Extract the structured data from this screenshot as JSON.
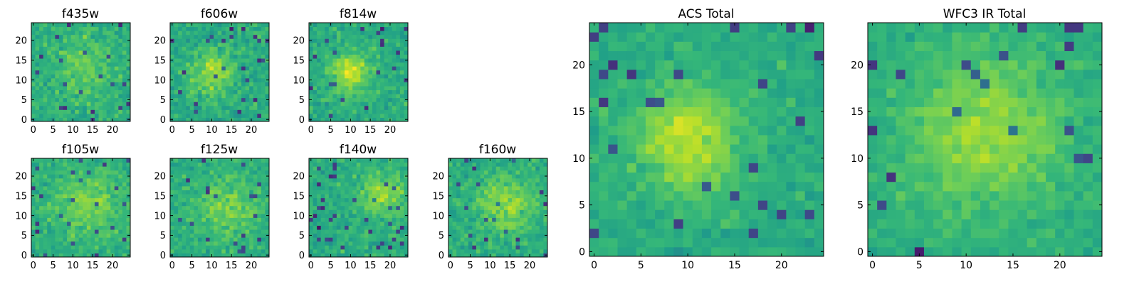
{
  "chart_data": [
    {
      "type": "heatmap",
      "title": "f435w",
      "size": 25,
      "xticks": [
        0,
        5,
        10,
        15,
        20
      ],
      "yticks": [
        0,
        5,
        10,
        15,
        20
      ],
      "peak": [
        13,
        13
      ],
      "peak_width": 6,
      "peak_strength": 0.12,
      "noise": 0.32,
      "seed": 11,
      "colormap": "viridis"
    },
    {
      "type": "heatmap",
      "title": "f606w",
      "size": 25,
      "xticks": [
        0,
        5,
        10,
        15,
        20
      ],
      "yticks": [
        0,
        5,
        10,
        15,
        20
      ],
      "peak": [
        10,
        12
      ],
      "peak_width": 4,
      "peak_strength": 0.2,
      "noise": 0.34,
      "seed": 23,
      "colormap": "viridis"
    },
    {
      "type": "heatmap",
      "title": "f814w",
      "size": 25,
      "xticks": [
        0,
        5,
        10,
        15,
        20
      ],
      "yticks": [
        0,
        5,
        10,
        15,
        20
      ],
      "peak": [
        10,
        12
      ],
      "peak_width": 3.5,
      "peak_strength": 0.3,
      "noise": 0.3,
      "seed": 37,
      "colormap": "viridis"
    },
    {
      "type": "heatmap",
      "title": "f105w",
      "size": 25,
      "xticks": [
        0,
        5,
        10,
        15,
        20
      ],
      "yticks": [
        0,
        5,
        10,
        15,
        20
      ],
      "peak": [
        14,
        13
      ],
      "peak_width": 6,
      "peak_strength": 0.18,
      "noise": 0.28,
      "seed": 41,
      "colormap": "viridis"
    },
    {
      "type": "heatmap",
      "title": "f125w",
      "size": 25,
      "xticks": [
        0,
        5,
        10,
        15,
        20
      ],
      "yticks": [
        0,
        5,
        10,
        15,
        20
      ],
      "peak": [
        14,
        12
      ],
      "peak_width": 6,
      "peak_strength": 0.16,
      "noise": 0.3,
      "seed": 53,
      "colormap": "viridis"
    },
    {
      "type": "heatmap",
      "title": "f140w",
      "size": 25,
      "xticks": [
        0,
        5,
        10,
        15,
        20
      ],
      "yticks": [
        0,
        5,
        10,
        15,
        20
      ],
      "peak": [
        18,
        15
      ],
      "peak_width": 4,
      "peak_strength": 0.22,
      "noise": 0.3,
      "seed": 67,
      "colormap": "viridis"
    },
    {
      "type": "heatmap",
      "title": "f160w",
      "size": 25,
      "xticks": [
        0,
        5,
        10,
        15,
        20
      ],
      "yticks": [
        0,
        5,
        10,
        15,
        20
      ],
      "peak": [
        14,
        13
      ],
      "peak_width": 5,
      "peak_strength": 0.22,
      "noise": 0.3,
      "seed": 71,
      "colormap": "viridis"
    },
    {
      "type": "heatmap",
      "title": "ACS Total",
      "size": 25,
      "xticks": [
        0,
        5,
        10,
        15,
        20
      ],
      "yticks": [
        0,
        5,
        10,
        15,
        20
      ],
      "peak": [
        10,
        12
      ],
      "peak_width": 4,
      "peak_strength": 0.28,
      "noise": 0.24,
      "seed": 83,
      "colormap": "viridis"
    },
    {
      "type": "heatmap",
      "title": "WFC3 IR Total",
      "size": 25,
      "xticks": [
        0,
        5,
        10,
        15,
        20
      ],
      "yticks": [
        0,
        5,
        10,
        15,
        20
      ],
      "peak": [
        12,
        13
      ],
      "peak_width": 6,
      "peak_strength": 0.22,
      "noise": 0.22,
      "seed": 97,
      "colormap": "viridis"
    }
  ]
}
